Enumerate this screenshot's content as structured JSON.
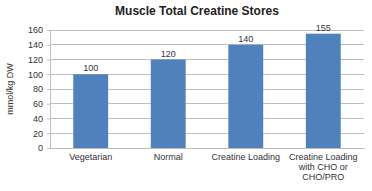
{
  "chart_data": {
    "type": "bar",
    "title": "Muscle Total Creatine Stores",
    "y_label": "mmol/kg DW",
    "categories": [
      "Vegetarian",
      "Normal",
      "Creatine Loading",
      "Creatine Loading with CHO or CHO/PRO"
    ],
    "values": [
      100,
      120,
      140,
      155
    ],
    "color": "#4f81bd",
    "ylim": [
      0,
      160
    ],
    "yticks": [
      0,
      20,
      40,
      60,
      80,
      100,
      120,
      140,
      160
    ],
    "grid": true,
    "data_labels": true
  }
}
